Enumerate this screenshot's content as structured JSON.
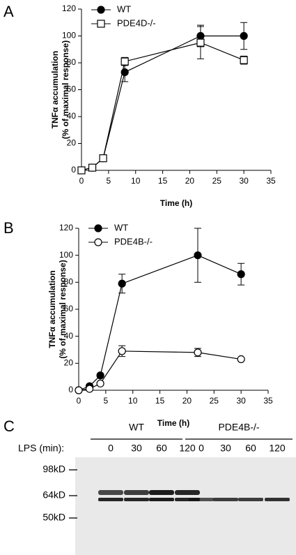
{
  "chart_data": [
    {
      "type": "line",
      "panel": "A",
      "xlabel": "Time (h)",
      "ylabel": [
        "TNFα accumulation",
        "(% of maximal response)"
      ],
      "x": [
        0,
        2,
        4,
        8,
        22,
        30
      ],
      "xlim": [
        0,
        35
      ],
      "xticks": [
        0,
        5,
        10,
        15,
        20,
        25,
        30,
        35
      ],
      "ylim": [
        0,
        120
      ],
      "yticks": [
        0,
        20,
        40,
        60,
        80,
        100,
        120
      ],
      "legend": "upper left",
      "series": [
        {
          "name": "WT",
          "color": "#000000",
          "marker": "circle",
          "facecolor": "#000000",
          "values": [
            0,
            2,
            9,
            73,
            100,
            100
          ],
          "errors": [
            0,
            1,
            1,
            7,
            8,
            10
          ]
        },
        {
          "name": "PDE4D-/-",
          "color": "#000000",
          "marker": "square",
          "facecolor": "#ffffff",
          "values": [
            0,
            2,
            9,
            81,
            95,
            82
          ],
          "errors": [
            0,
            1,
            1,
            3,
            12,
            3
          ]
        }
      ]
    },
    {
      "type": "line",
      "panel": "B",
      "xlabel": "Time (h)",
      "ylabel": [
        "TNFα accumulation",
        "(% of maximal response)"
      ],
      "x": [
        0,
        2,
        4,
        8,
        22,
        30
      ],
      "xlim": [
        0,
        35
      ],
      "xticks": [
        0,
        5,
        10,
        15,
        20,
        25,
        30,
        35
      ],
      "ylim": [
        0,
        120
      ],
      "yticks": [
        0,
        20,
        40,
        60,
        80,
        100,
        120
      ],
      "legend": "upper left",
      "series": [
        {
          "name": "WT",
          "color": "#000000",
          "marker": "circle",
          "facecolor": "#000000",
          "values": [
            0,
            3,
            11,
            79,
            100,
            86
          ],
          "errors": [
            0,
            1,
            1,
            7,
            20,
            8
          ]
        },
        {
          "name": "PDE4B-/-",
          "color": "#000000",
          "marker": "circle",
          "facecolor": "#ffffff",
          "values": [
            0,
            1,
            5,
            29,
            28,
            23
          ],
          "errors": [
            0,
            0,
            0,
            4,
            3,
            1
          ]
        }
      ]
    }
  ],
  "blot": {
    "panel": "C",
    "groups": [
      "WT",
      "PDE4B-/-"
    ],
    "row_label": "LPS (min):",
    "lanes": [
      [
        "0",
        "30",
        "60",
        "120"
      ],
      [
        "0",
        "30",
        "60",
        "120"
      ]
    ],
    "markers": [
      "98kD",
      "64kD",
      "50kD"
    ]
  }
}
